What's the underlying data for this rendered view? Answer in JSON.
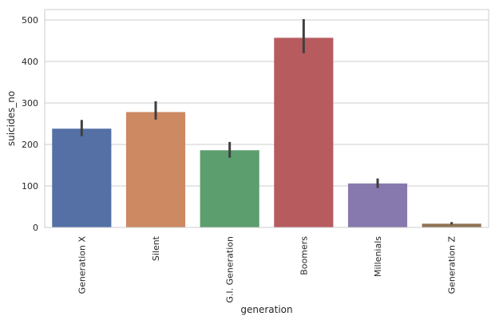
{
  "chart_data": {
    "type": "bar",
    "title": "",
    "xlabel": "generation",
    "ylabel": "suicides_no",
    "categories": [
      "Generation X",
      "Silent",
      "G.I. Generation",
      "Boomers",
      "Millenials",
      "Generation Z"
    ],
    "values": [
      238,
      278,
      186,
      457,
      106,
      9
    ],
    "error_low": [
      220,
      260,
      168,
      420,
      95,
      7
    ],
    "error_high": [
      259,
      304,
      206,
      502,
      118,
      13
    ],
    "colors": [
      "#5470a5",
      "#cc8962",
      "#5c9e6e",
      "#b75b5f",
      "#8779ad",
      "#8f7356"
    ],
    "ylim": [
      0,
      525
    ],
    "yticks": [
      0,
      100,
      200,
      300,
      400,
      500
    ],
    "grid": true,
    "style": {
      "background": "#ffffff",
      "grid_color": "#cccccc",
      "frame_color": "#cccccc",
      "error_bar_color": "#3f3f3f"
    }
  }
}
